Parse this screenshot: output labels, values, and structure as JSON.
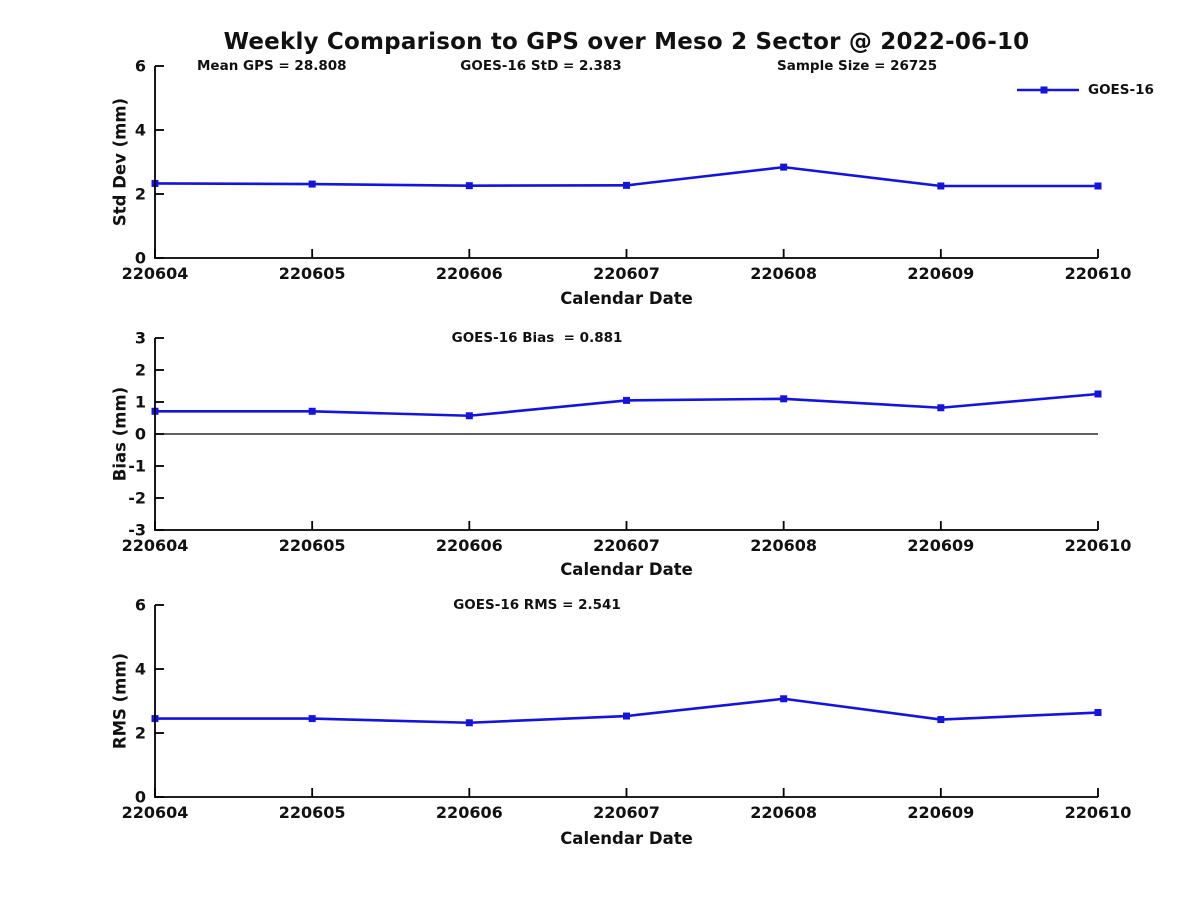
{
  "figure": {
    "title": "Weekly Comparison to GPS over Meso 2 Sector @ 2022-06-10",
    "legend": {
      "label": "GOES-16",
      "color": "#1414DC",
      "position": "top-right"
    }
  },
  "chart_data": [
    {
      "type": "line",
      "id": "stddev",
      "annotations": [
        "Mean GPS = 28.808",
        "GOES-16 StD = 2.383",
        "Sample Size = 26725"
      ],
      "xlabel": "Calendar Date",
      "ylabel": "Std Dev (mm)",
      "categories": [
        "220604",
        "220605",
        "220606",
        "220607",
        "220608",
        "220609",
        "220610"
      ],
      "series": [
        {
          "name": "GOES-16",
          "color": "#1414DC",
          "marker": "square",
          "values": [
            2.33,
            2.31,
            2.26,
            2.27,
            2.84,
            2.25,
            2.25
          ]
        }
      ],
      "ylim": [
        0,
        6
      ],
      "yticks": [
        0,
        2,
        4,
        6
      ],
      "grid": false,
      "legend_position": "top-right"
    },
    {
      "type": "line",
      "id": "bias",
      "title": "GOES-16 Bias  = 0.881",
      "xlabel": "Calendar Date",
      "ylabel": "Bias (mm)",
      "categories": [
        "220604",
        "220605",
        "220606",
        "220607",
        "220608",
        "220609",
        "220610"
      ],
      "series": [
        {
          "name": "GOES-16",
          "color": "#1414DC",
          "marker": "square",
          "values": [
            0.71,
            0.71,
            0.57,
            1.05,
            1.1,
            0.82,
            1.25
          ]
        }
      ],
      "ylim": [
        -3,
        3
      ],
      "yticks": [
        -3,
        -2,
        -1,
        0,
        1,
        2,
        3
      ],
      "zero_line": true,
      "grid": false
    },
    {
      "type": "line",
      "id": "rms",
      "title": "GOES-16 RMS = 2.541",
      "xlabel": "Calendar Date",
      "ylabel": "RMS (mm)",
      "categories": [
        "220604",
        "220605",
        "220606",
        "220607",
        "220608",
        "220609",
        "220610"
      ],
      "series": [
        {
          "name": "GOES-16",
          "color": "#1414DC",
          "marker": "square",
          "values": [
            2.45,
            2.45,
            2.32,
            2.53,
            3.07,
            2.42,
            2.64
          ]
        }
      ],
      "ylim": [
        0,
        6
      ],
      "yticks": [
        0,
        2,
        4,
        6
      ],
      "grid": false
    }
  ]
}
